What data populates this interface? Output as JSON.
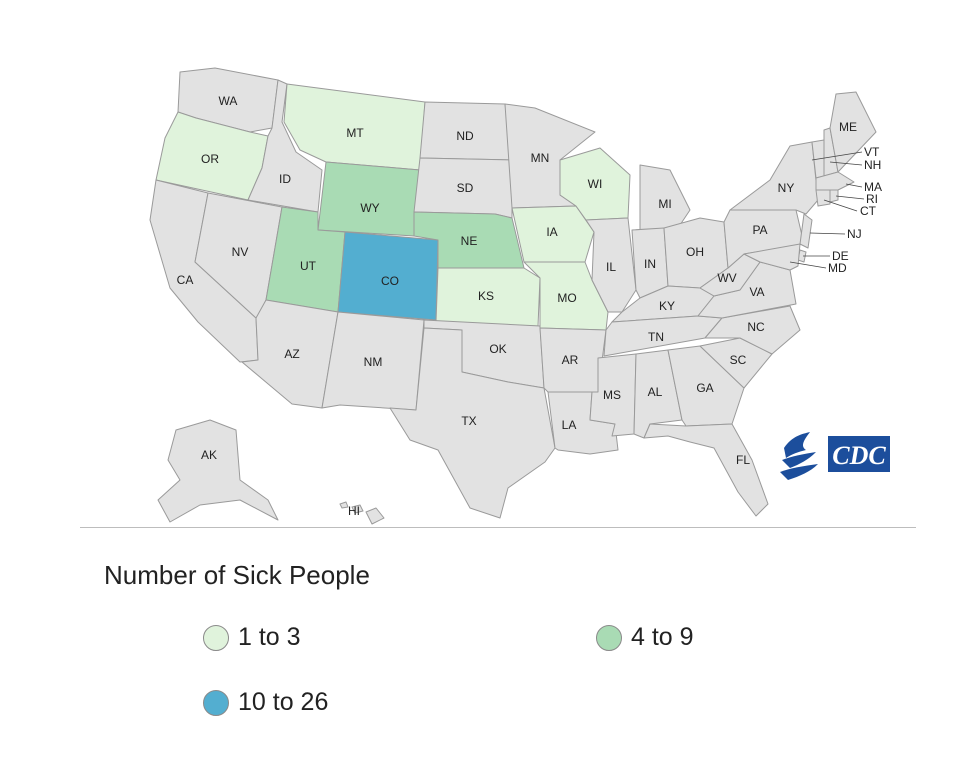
{
  "legend": {
    "title": "Number of Sick People",
    "items": [
      {
        "label": "1 to 3",
        "color": "#e0f3dc"
      },
      {
        "label": "4 to 9",
        "color": "#a9dbb4"
      },
      {
        "label": "10 to 26",
        "color": "#53aed0"
      }
    ]
  },
  "colors": {
    "no_cases": "#e2e2e2",
    "border": "#9a9a9a",
    "cdc_blue": "#1c4e9c"
  },
  "logo": {
    "text": "CDC"
  },
  "states": [
    {
      "abbr": "WA",
      "category": 0
    },
    {
      "abbr": "OR",
      "category": 1
    },
    {
      "abbr": "CA",
      "category": 0
    },
    {
      "abbr": "ID",
      "category": 0
    },
    {
      "abbr": "NV",
      "category": 0
    },
    {
      "abbr": "MT",
      "category": 1
    },
    {
      "abbr": "WY",
      "category": 2
    },
    {
      "abbr": "UT",
      "category": 2
    },
    {
      "abbr": "CO",
      "category": 3
    },
    {
      "abbr": "AZ",
      "category": 0
    },
    {
      "abbr": "NM",
      "category": 0
    },
    {
      "abbr": "ND",
      "category": 0
    },
    {
      "abbr": "SD",
      "category": 0
    },
    {
      "abbr": "NE",
      "category": 2
    },
    {
      "abbr": "KS",
      "category": 1
    },
    {
      "abbr": "OK",
      "category": 0
    },
    {
      "abbr": "TX",
      "category": 0
    },
    {
      "abbr": "MN",
      "category": 0
    },
    {
      "abbr": "IA",
      "category": 1
    },
    {
      "abbr": "MO",
      "category": 1
    },
    {
      "abbr": "AR",
      "category": 0
    },
    {
      "abbr": "LA",
      "category": 0
    },
    {
      "abbr": "WI",
      "category": 1
    },
    {
      "abbr": "IL",
      "category": 0
    },
    {
      "abbr": "MI",
      "category": 0
    },
    {
      "abbr": "IN",
      "category": 0
    },
    {
      "abbr": "OH",
      "category": 0
    },
    {
      "abbr": "KY",
      "category": 0
    },
    {
      "abbr": "TN",
      "category": 0
    },
    {
      "abbr": "MS",
      "category": 0
    },
    {
      "abbr": "AL",
      "category": 0
    },
    {
      "abbr": "GA",
      "category": 0
    },
    {
      "abbr": "FL",
      "category": 0
    },
    {
      "abbr": "SC",
      "category": 0
    },
    {
      "abbr": "NC",
      "category": 0
    },
    {
      "abbr": "VA",
      "category": 0
    },
    {
      "abbr": "WV",
      "category": 0
    },
    {
      "abbr": "PA",
      "category": 0
    },
    {
      "abbr": "NY",
      "category": 0
    },
    {
      "abbr": "ME",
      "category": 0
    },
    {
      "abbr": "VT",
      "category": 0
    },
    {
      "abbr": "NH",
      "category": 0
    },
    {
      "abbr": "MA",
      "category": 0
    },
    {
      "abbr": "RI",
      "category": 0
    },
    {
      "abbr": "CT",
      "category": 0
    },
    {
      "abbr": "NJ",
      "category": 0
    },
    {
      "abbr": "DE",
      "category": 0
    },
    {
      "abbr": "MD",
      "category": 0
    },
    {
      "abbr": "AK",
      "category": 0
    },
    {
      "abbr": "HI",
      "category": 0
    }
  ]
}
